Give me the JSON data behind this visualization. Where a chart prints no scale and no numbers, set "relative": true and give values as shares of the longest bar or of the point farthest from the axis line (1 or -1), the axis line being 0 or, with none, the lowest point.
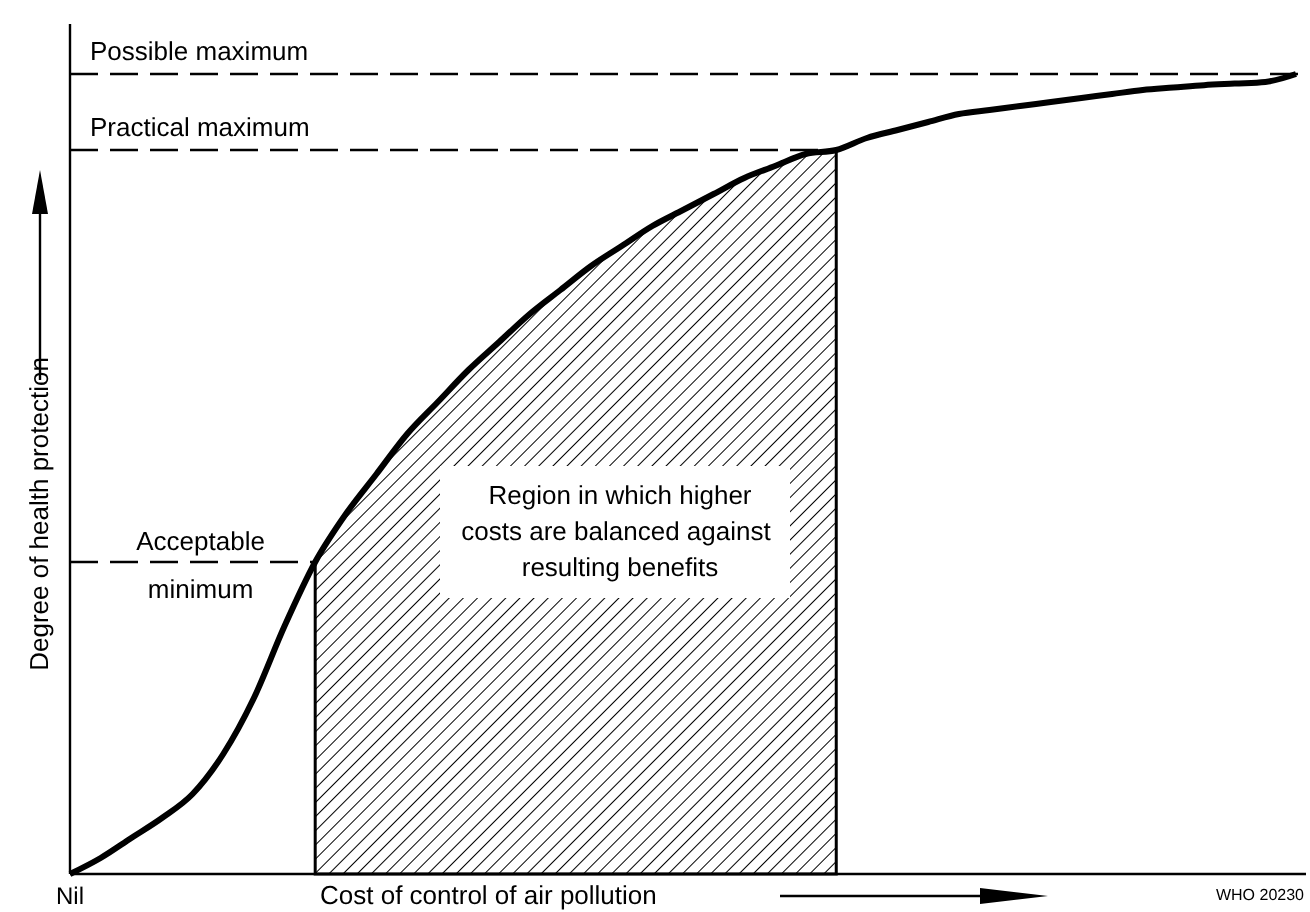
{
  "chart_data": {
    "type": "line",
    "relative": true,
    "ylabel": "Degree of health protection",
    "xlabel": "Cost of control of air pollution",
    "categories": [
      null,
      null,
      null,
      null,
      null,
      null,
      null,
      null,
      null,
      null,
      null,
      null,
      null,
      null,
      null,
      null,
      null,
      null,
      null,
      null,
      null,
      null,
      null,
      null,
      null,
      null,
      null,
      null,
      null,
      null,
      null,
      null,
      null,
      null,
      null,
      null,
      null,
      null,
      null,
      null,
      null
    ],
    "series": [
      {
        "type": "area",
        "color": "#000000",
        "values": [
          null,
          null,
          null,
          null,
          null,
          null,
          null,
          null,
          0.39,
          0.45,
          0.5,
          0.55,
          0.59,
          0.63,
          0.665,
          0.7,
          0.73,
          0.76,
          0.785,
          0.81,
          0.83,
          0.85,
          0.87,
          0.885,
          0.9,
          0.905,
          null,
          null,
          null,
          null,
          null,
          null,
          null,
          null,
          null,
          null,
          null,
          null,
          null,
          null,
          null
        ]
      },
      {
        "color": "#000000",
        "values": [
          0,
          0.02,
          0.045,
          0.07,
          0.1,
          0.15,
          0.22,
          0.31,
          0.39,
          0.45,
          0.5,
          0.55,
          0.59,
          0.63,
          0.665,
          0.7,
          0.73,
          0.76,
          0.785,
          0.81,
          0.83,
          0.85,
          0.87,
          0.885,
          0.9,
          0.905,
          0.92,
          0.93,
          0.94,
          0.95,
          0.955,
          0.96,
          0.965,
          0.97,
          0.975,
          0.98,
          0.983,
          0.986,
          0.988,
          0.99,
          1
        ]
      }
    ],
    "ref_lines": [
      {
        "axis": "y",
        "value": 1,
        "label": "Possible maximum",
        "line_style": "dashed"
      },
      {
        "axis": "y",
        "value": 0.905,
        "label": "Practical maximum",
        "line_style": "dashed"
      },
      {
        "axis": "y",
        "value": 0.39,
        "label": "Acceptable minimum",
        "line_style": "dashed"
      }
    ],
    "annotations": [
      {
        "text": "Region in which higher costs are balanced against resulting benefits"
      },
      {
        "text": "Nil"
      },
      {
        "text": "WHO 20230"
      }
    ],
    "line_style": "solid",
    "marker": "none"
  }
}
